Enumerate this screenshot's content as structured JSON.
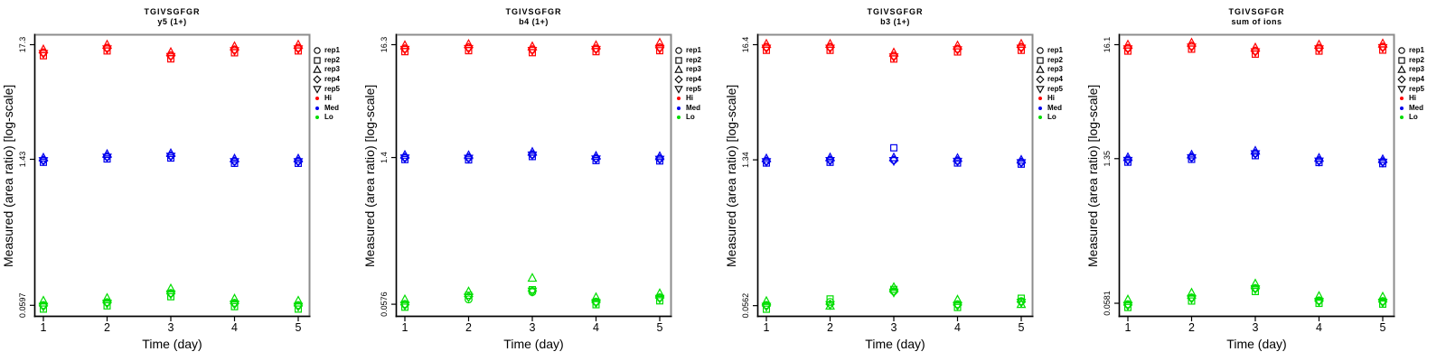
{
  "legend": {
    "reps": [
      {
        "label": "rep1",
        "symbol": "circle"
      },
      {
        "label": "rep2",
        "symbol": "square"
      },
      {
        "label": "rep3",
        "symbol": "triangle-up"
      },
      {
        "label": "rep4",
        "symbol": "diamond"
      },
      {
        "label": "rep5",
        "symbol": "triangle-down"
      }
    ],
    "levels": [
      {
        "label": "Hi",
        "color": "#FF0000"
      },
      {
        "label": "Med",
        "color": "#0000EE"
      },
      {
        "label": "Lo",
        "color": "#00DD00"
      }
    ]
  },
  "chart_data": [
    {
      "type": "scatter",
      "title": "TGIVSGFGR",
      "subtitle": "y5 (1+)",
      "xlabel": "Time (day)",
      "ylabel": "Measured (area ratio) [log-scale]",
      "y_scale": "log",
      "x_ticks": [
        1,
        2,
        3,
        4,
        5
      ],
      "x_tick_labels": [
        "1",
        "2",
        "3",
        "4",
        "5"
      ],
      "y_ticks": [
        17.3,
        1.43,
        0.0597
      ],
      "y_tick_labels": [
        "17.3",
        "1.43",
        "0.0597"
      ],
      "ylim": [
        0.047,
        21.4
      ],
      "grid": false,
      "legend_position": "right",
      "series": [
        {
          "name": "Hi",
          "color": "#FF0000",
          "reps": [
            [
              14.6,
              16.2,
              13.7,
              15.6,
              16.2
            ],
            [
              13.6,
              15.1,
              12.7,
              14.5,
              15.1
            ],
            [
              15.6,
              17.3,
              14.7,
              16.7,
              17.3
            ],
            [
              14.5,
              16.0,
              13.6,
              15.4,
              16.0
            ],
            [
              14.2,
              15.7,
              13.3,
              15.1,
              15.7
            ]
          ]
        },
        {
          "name": "Med",
          "color": "#0000EE",
          "reps": [
            [
              1.41,
              1.52,
              1.55,
              1.38,
              1.38
            ],
            [
              1.34,
              1.44,
              1.47,
              1.31,
              1.31
            ],
            [
              1.48,
              1.6,
              1.63,
              1.45,
              1.45
            ],
            [
              1.4,
              1.51,
              1.54,
              1.37,
              1.37
            ],
            [
              1.38,
              1.49,
              1.52,
              1.35,
              1.35
            ]
          ]
        },
        {
          "name": "Lo",
          "color": "#00DD00",
          "reps": [
            [
              0.06,
              0.064,
              0.078,
              0.063,
              0.06
            ],
            [
              0.055,
              0.059,
              0.072,
              0.058,
              0.055
            ],
            [
              0.066,
              0.07,
              0.086,
              0.069,
              0.066
            ],
            [
              0.059,
              0.063,
              0.077,
              0.062,
              0.059
            ],
            [
              0.058,
              0.062,
              0.076,
              0.061,
              0.058
            ]
          ]
        }
      ]
    },
    {
      "type": "scatter",
      "title": "TGIVSGFGR",
      "subtitle": "b4 (1+)",
      "xlabel": "Time (day)",
      "ylabel": "Measured (area ratio) [log-scale]",
      "y_scale": "log",
      "x_ticks": [
        1,
        2,
        3,
        4,
        5
      ],
      "x_tick_labels": [
        "1",
        "2",
        "3",
        "4",
        "5"
      ],
      "y_ticks": [
        16.3,
        1.4,
        0.0576
      ],
      "y_tick_labels": [
        "16.3",
        "1.4",
        "0.0576"
      ],
      "ylim": [
        0.045,
        20.2
      ],
      "grid": false,
      "legend_position": "right",
      "series": [
        {
          "name": "Hi",
          "color": "#FF0000",
          "reps": [
            [
              15.0,
              15.4,
              14.7,
              15.0,
              15.4
            ],
            [
              14.0,
              14.3,
              13.7,
              14.0,
              14.3
            ],
            [
              16.1,
              16.5,
              15.7,
              16.1,
              17.0
            ],
            [
              14.9,
              15.3,
              14.6,
              14.9,
              15.3
            ],
            [
              14.6,
              14.9,
              14.3,
              14.6,
              14.9
            ]
          ]
        },
        {
          "name": "Med",
          "color": "#0000EE",
          "reps": [
            [
              1.41,
              1.4,
              1.5,
              1.38,
              1.37
            ],
            [
              1.34,
              1.33,
              1.43,
              1.31,
              1.3
            ],
            [
              1.48,
              1.47,
              1.58,
              1.45,
              1.44
            ],
            [
              1.4,
              1.39,
              1.49,
              1.37,
              1.36
            ],
            [
              1.38,
              1.37,
              1.47,
              1.35,
              1.34
            ]
          ]
        },
        {
          "name": "Lo",
          "color": "#00DD00",
          "reps": [
            [
              0.058,
              0.064,
              0.075,
              0.061,
              0.067
            ],
            [
              0.054,
              0.07,
              0.079,
              0.057,
              0.062
            ],
            [
              0.064,
              0.076,
              0.102,
              0.067,
              0.073
            ],
            [
              0.057,
              0.068,
              0.077,
              0.06,
              0.066
            ],
            [
              0.056,
              0.067,
              0.076,
              0.059,
              0.065
            ]
          ]
        }
      ]
    },
    {
      "type": "scatter",
      "title": "TGIVSGFGR",
      "subtitle": "b3 (1+)",
      "xlabel": "Time (day)",
      "ylabel": "Measured (area ratio) [log-scale]",
      "y_scale": "log",
      "x_ticks": [
        1,
        2,
        3,
        4,
        5
      ],
      "x_tick_labels": [
        "1",
        "2",
        "3",
        "4",
        "5"
      ],
      "y_ticks": [
        16.4,
        1.34,
        0.0562
      ],
      "y_tick_labels": [
        "16.4",
        "1.34",
        "0.0562"
      ],
      "ylim": [
        0.044,
        20.3
      ],
      "grid": false,
      "legend_position": "right",
      "series": [
        {
          "name": "Hi",
          "color": "#FF0000",
          "reps": [
            [
              15.6,
              15.6,
              12.9,
              15.0,
              15.6
            ],
            [
              14.5,
              14.5,
              12.0,
              14.0,
              14.5
            ],
            [
              16.7,
              16.7,
              13.8,
              16.1,
              16.7
            ],
            [
              15.5,
              15.5,
              12.8,
              14.9,
              15.5
            ],
            [
              15.1,
              15.1,
              12.5,
              14.6,
              15.1
            ]
          ]
        },
        {
          "name": "Med",
          "color": "#0000EE",
          "reps": [
            [
              1.31,
              1.34,
              1.34,
              1.32,
              1.28
            ],
            [
              1.25,
              1.27,
              1.74,
              1.25,
              1.22
            ],
            [
              1.38,
              1.41,
              1.41,
              1.39,
              1.34
            ],
            [
              1.3,
              1.33,
              1.33,
              1.31,
              1.27
            ],
            [
              1.28,
              1.31,
              1.31,
              1.29,
              1.25
            ]
          ]
        },
        {
          "name": "Lo",
          "color": "#00DD00",
          "reps": [
            [
              0.057,
              0.061,
              0.077,
              0.058,
              0.062
            ],
            [
              0.052,
              0.065,
              0.08,
              0.054,
              0.066
            ],
            [
              0.062,
              0.056,
              0.084,
              0.064,
              0.058
            ],
            [
              0.056,
              0.058,
              0.076,
              0.057,
              0.061
            ],
            [
              0.055,
              0.057,
              0.075,
              0.056,
              0.06
            ]
          ]
        }
      ]
    },
    {
      "type": "scatter",
      "title": "TGIVSGFGR",
      "subtitle": "sum of ions",
      "xlabel": "Time (day)",
      "ylabel": "Measured (area ratio) [log-scale]",
      "y_scale": "log",
      "x_ticks": [
        1,
        2,
        3,
        4,
        5
      ],
      "x_tick_labels": [
        "1",
        "2",
        "3",
        "4",
        "5"
      ],
      "y_ticks": [
        16.1,
        1.35,
        0.0581
      ],
      "y_tick_labels": [
        "16.1",
        "1.35",
        "0.0581"
      ],
      "ylim": [
        0.046,
        20.0
      ],
      "grid": false,
      "legend_position": "right",
      "series": [
        {
          "name": "Hi",
          "color": "#FF0000",
          "reps": [
            [
              15.0,
              15.7,
              14.1,
              15.0,
              15.4
            ],
            [
              14.0,
              14.6,
              13.1,
              14.0,
              14.3
            ],
            [
              16.1,
              16.8,
              15.1,
              16.1,
              16.5
            ],
            [
              14.9,
              15.6,
              14.0,
              14.9,
              15.3
            ],
            [
              14.6,
              15.2,
              13.7,
              14.6,
              15.0
            ]
          ]
        },
        {
          "name": "Med",
          "color": "#0000EE",
          "reps": [
            [
              1.32,
              1.4,
              1.52,
              1.3,
              1.27
            ],
            [
              1.25,
              1.33,
              1.44,
              1.24,
              1.21
            ],
            [
              1.39,
              1.47,
              1.6,
              1.37,
              1.33
            ],
            [
              1.31,
              1.39,
              1.51,
              1.29,
              1.26
            ],
            [
              1.29,
              1.37,
              1.49,
              1.27,
              1.24
            ]
          ]
        },
        {
          "name": "Lo",
          "color": "#00DD00",
          "reps": [
            [
              0.057,
              0.066,
              0.081,
              0.062,
              0.061
            ],
            [
              0.053,
              0.061,
              0.075,
              0.058,
              0.057
            ],
            [
              0.063,
              0.073,
              0.089,
              0.068,
              0.067
            ],
            [
              0.056,
              0.065,
              0.08,
              0.061,
              0.06
            ],
            [
              0.055,
              0.064,
              0.079,
              0.06,
              0.059
            ]
          ]
        }
      ]
    }
  ]
}
